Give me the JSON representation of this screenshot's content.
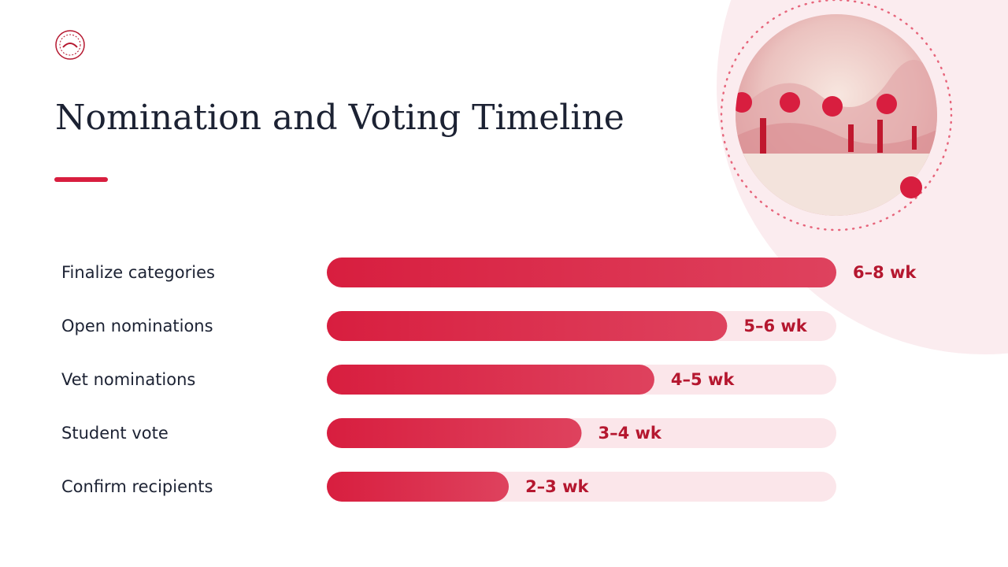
{
  "chart_data": {
    "type": "bar",
    "orientation": "horizontal",
    "title": "Nomination and Voting Timeline",
    "categories": [
      "Finalize categories",
      "Open nominations",
      "Vet nominations",
      "Student vote",
      "Confirm recipients"
    ],
    "values": [
      7,
      5.5,
      4.5,
      3.5,
      2.5
    ],
    "value_labels": [
      "6–8 wk",
      "5–6 wk",
      "4–5 wk",
      "3–4 wk",
      "2–3 wk"
    ],
    "xlim": [
      0,
      7
    ],
    "color": "#d81e3f",
    "track_color": "#fbe6ea"
  }
}
